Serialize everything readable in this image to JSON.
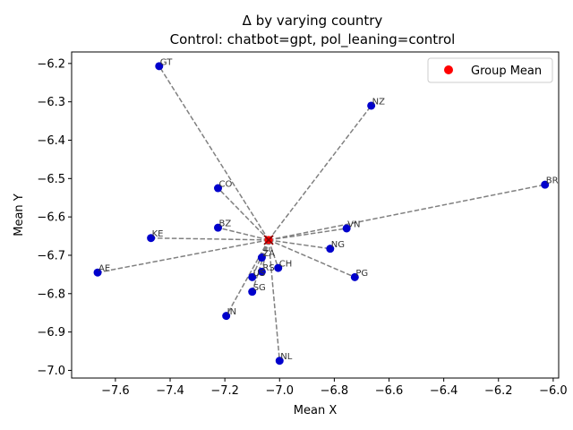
{
  "chart_data": {
    "type": "scatter",
    "title": "Δ by varying country",
    "subtitle": "Control: chatbot=gpt, pol_leaning=control",
    "xlabel": "Mean X",
    "ylabel": "Mean Y",
    "xlim": [
      -7.76,
      -5.98
    ],
    "ylim": [
      -7.02,
      -6.17
    ],
    "xticks": [
      -7.6,
      -7.4,
      -7.2,
      -7.0,
      -6.8,
      -6.6,
      -6.4,
      -6.2,
      -6.0
    ],
    "xtick_labels": [
      "−7.6",
      "−7.4",
      "−7.2",
      "−7.0",
      "−6.8",
      "−6.6",
      "−6.4",
      "−6.2",
      "−6.0"
    ],
    "yticks": [
      -6.2,
      -6.3,
      -6.4,
      -6.5,
      -6.6,
      -6.7,
      -6.8,
      -6.9,
      -7.0
    ],
    "ytick_labels": [
      "−6.2",
      "−6.3",
      "−6.4",
      "−6.5",
      "−6.6",
      "−6.7",
      "−6.8",
      "−6.9",
      "−7.0"
    ],
    "grid": false,
    "legend": {
      "position": "top-right",
      "entries": [
        {
          "label": "Group Mean",
          "color": "#ff0000"
        }
      ]
    },
    "group_mean": {
      "x": -7.04,
      "y": -6.66,
      "color": "#ff0000",
      "marker": "x-and-circle"
    },
    "point_color": "#0000cc",
    "line_color": "#808080",
    "points": [
      {
        "label": "GT",
        "x": -7.44,
        "y": -6.207
      },
      {
        "label": "NZ",
        "x": -6.665,
        "y": -6.31
      },
      {
        "label": "CO",
        "x": -7.225,
        "y": -6.525
      },
      {
        "label": "BR",
        "x": -6.03,
        "y": -6.516
      },
      {
        "label": "BZ",
        "x": -7.225,
        "y": -6.628
      },
      {
        "label": "VN",
        "x": -6.755,
        "y": -6.63
      },
      {
        "label": "KE",
        "x": -7.47,
        "y": -6.655
      },
      {
        "label": "NG",
        "x": -6.815,
        "y": -6.683
      },
      {
        "label": "ZA",
        "x": -7.065,
        "y": -6.706
      },
      {
        "label": "CH",
        "x": -7.005,
        "y": -6.733
      },
      {
        "label": "AE",
        "x": -7.665,
        "y": -6.745
      },
      {
        "label": "RS",
        "x": -7.065,
        "y": -6.743
      },
      {
        "label": "US",
        "x": -7.1,
        "y": -6.757
      },
      {
        "label": "PG",
        "x": -6.725,
        "y": -6.757
      },
      {
        "label": "SG",
        "x": -7.1,
        "y": -6.795
      },
      {
        "label": "IN",
        "x": -7.195,
        "y": -6.858
      },
      {
        "label": "NL",
        "x": -7.0,
        "y": -6.975
      }
    ]
  }
}
